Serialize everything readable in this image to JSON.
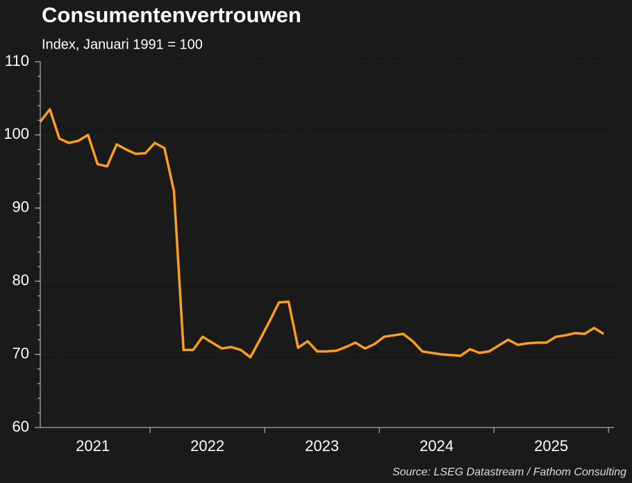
{
  "chart_data": {
    "type": "line",
    "title": "Consumentenvertrouwen",
    "subtitle": "Index, Januari 1991 = 100",
    "source": "Source: LSEG Datastream / Fathom Consulting",
    "categories": [
      null,
      null,
      null,
      null,
      null,
      null,
      "2021",
      null,
      null,
      null,
      null,
      null,
      null,
      null,
      null,
      null,
      null,
      null,
      "2022",
      null,
      null,
      null,
      null,
      null,
      null,
      null,
      null,
      null,
      null,
      null,
      "2023",
      null,
      null,
      null,
      null,
      null,
      null,
      null,
      null,
      null,
      null,
      null,
      "2024",
      null,
      null,
      null,
      null,
      null,
      null,
      null,
      null,
      null,
      null,
      null,
      "2025",
      null,
      null,
      null,
      null,
      null
    ],
    "series": [
      {
        "name": "Consumentenvertrouwen",
        "color": "#ff9f1c",
        "values": [
          101.8,
          103.5,
          99.5,
          98.9,
          99.2,
          100,
          96,
          95.7,
          98.7,
          98,
          97.4,
          97.5,
          98.9,
          98.2,
          92.3,
          70.6,
          70.6,
          72.4,
          71.6,
          70.8,
          71,
          70.6,
          69.6,
          72,
          74.5,
          77.1,
          77.2,
          70.9,
          71.8,
          70.4,
          70.4,
          70.5,
          71,
          71.6,
          70.8,
          71.4,
          72.4,
          72.6,
          72.8,
          71.8,
          70.4,
          70.2,
          70,
          69.9,
          69.8,
          70.7,
          70.2,
          70.4,
          71.2,
          72,
          71.3,
          71.5,
          71.6,
          71.6,
          72.4,
          72.6,
          72.9,
          72.8,
          73.6,
          72.8
        ]
      }
    ],
    "ylim": [
      60,
      110
    ],
    "yticks": [
      60,
      70,
      80,
      90,
      100,
      110
    ],
    "grid": true
  }
}
